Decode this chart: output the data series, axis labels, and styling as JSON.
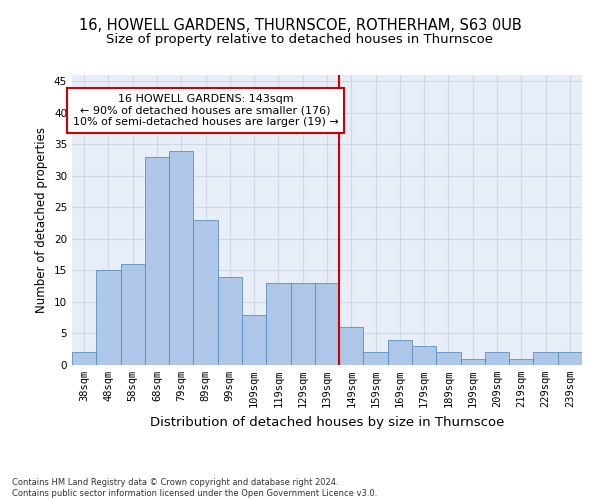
{
  "title": "16, HOWELL GARDENS, THURNSCOE, ROTHERHAM, S63 0UB",
  "subtitle": "Size of property relative to detached houses in Thurnscoe",
  "xlabel": "Distribution of detached houses by size in Thurnscoe",
  "ylabel": "Number of detached properties",
  "bin_labels": [
    "38sqm",
    "48sqm",
    "58sqm",
    "68sqm",
    "79sqm",
    "89sqm",
    "99sqm",
    "109sqm",
    "119sqm",
    "129sqm",
    "139sqm",
    "149sqm",
    "159sqm",
    "169sqm",
    "179sqm",
    "189sqm",
    "199sqm",
    "209sqm",
    "219sqm",
    "229sqm",
    "239sqm"
  ],
  "bar_heights": [
    2,
    15,
    16,
    33,
    34,
    23,
    14,
    8,
    13,
    13,
    13,
    6,
    2,
    4,
    3,
    2,
    1,
    2,
    1,
    2,
    2
  ],
  "bar_color": "#aec6e8",
  "bar_edge_color": "#5a8fc0",
  "annotation_text": "16 HOWELL GARDENS: 143sqm\n← 90% of detached houses are smaller (176)\n10% of semi-detached houses are larger (19) →",
  "annotation_box_color": "#ffffff",
  "annotation_box_edge_color": "#cc0000",
  "vline_color": "#cc0000",
  "grid_color": "#d0d8e8",
  "background_color": "#e8eef7",
  "footer_text": "Contains HM Land Registry data © Crown copyright and database right 2024.\nContains public sector information licensed under the Open Government Licence v3.0.",
  "ylim": [
    0,
    46
  ],
  "title_fontsize": 10.5,
  "subtitle_fontsize": 9.5,
  "ylabel_fontsize": 8.5,
  "xlabel_fontsize": 9.5,
  "tick_fontsize": 7.5,
  "footer_fontsize": 6,
  "annotation_fontsize": 8,
  "vline_x": 10.5
}
